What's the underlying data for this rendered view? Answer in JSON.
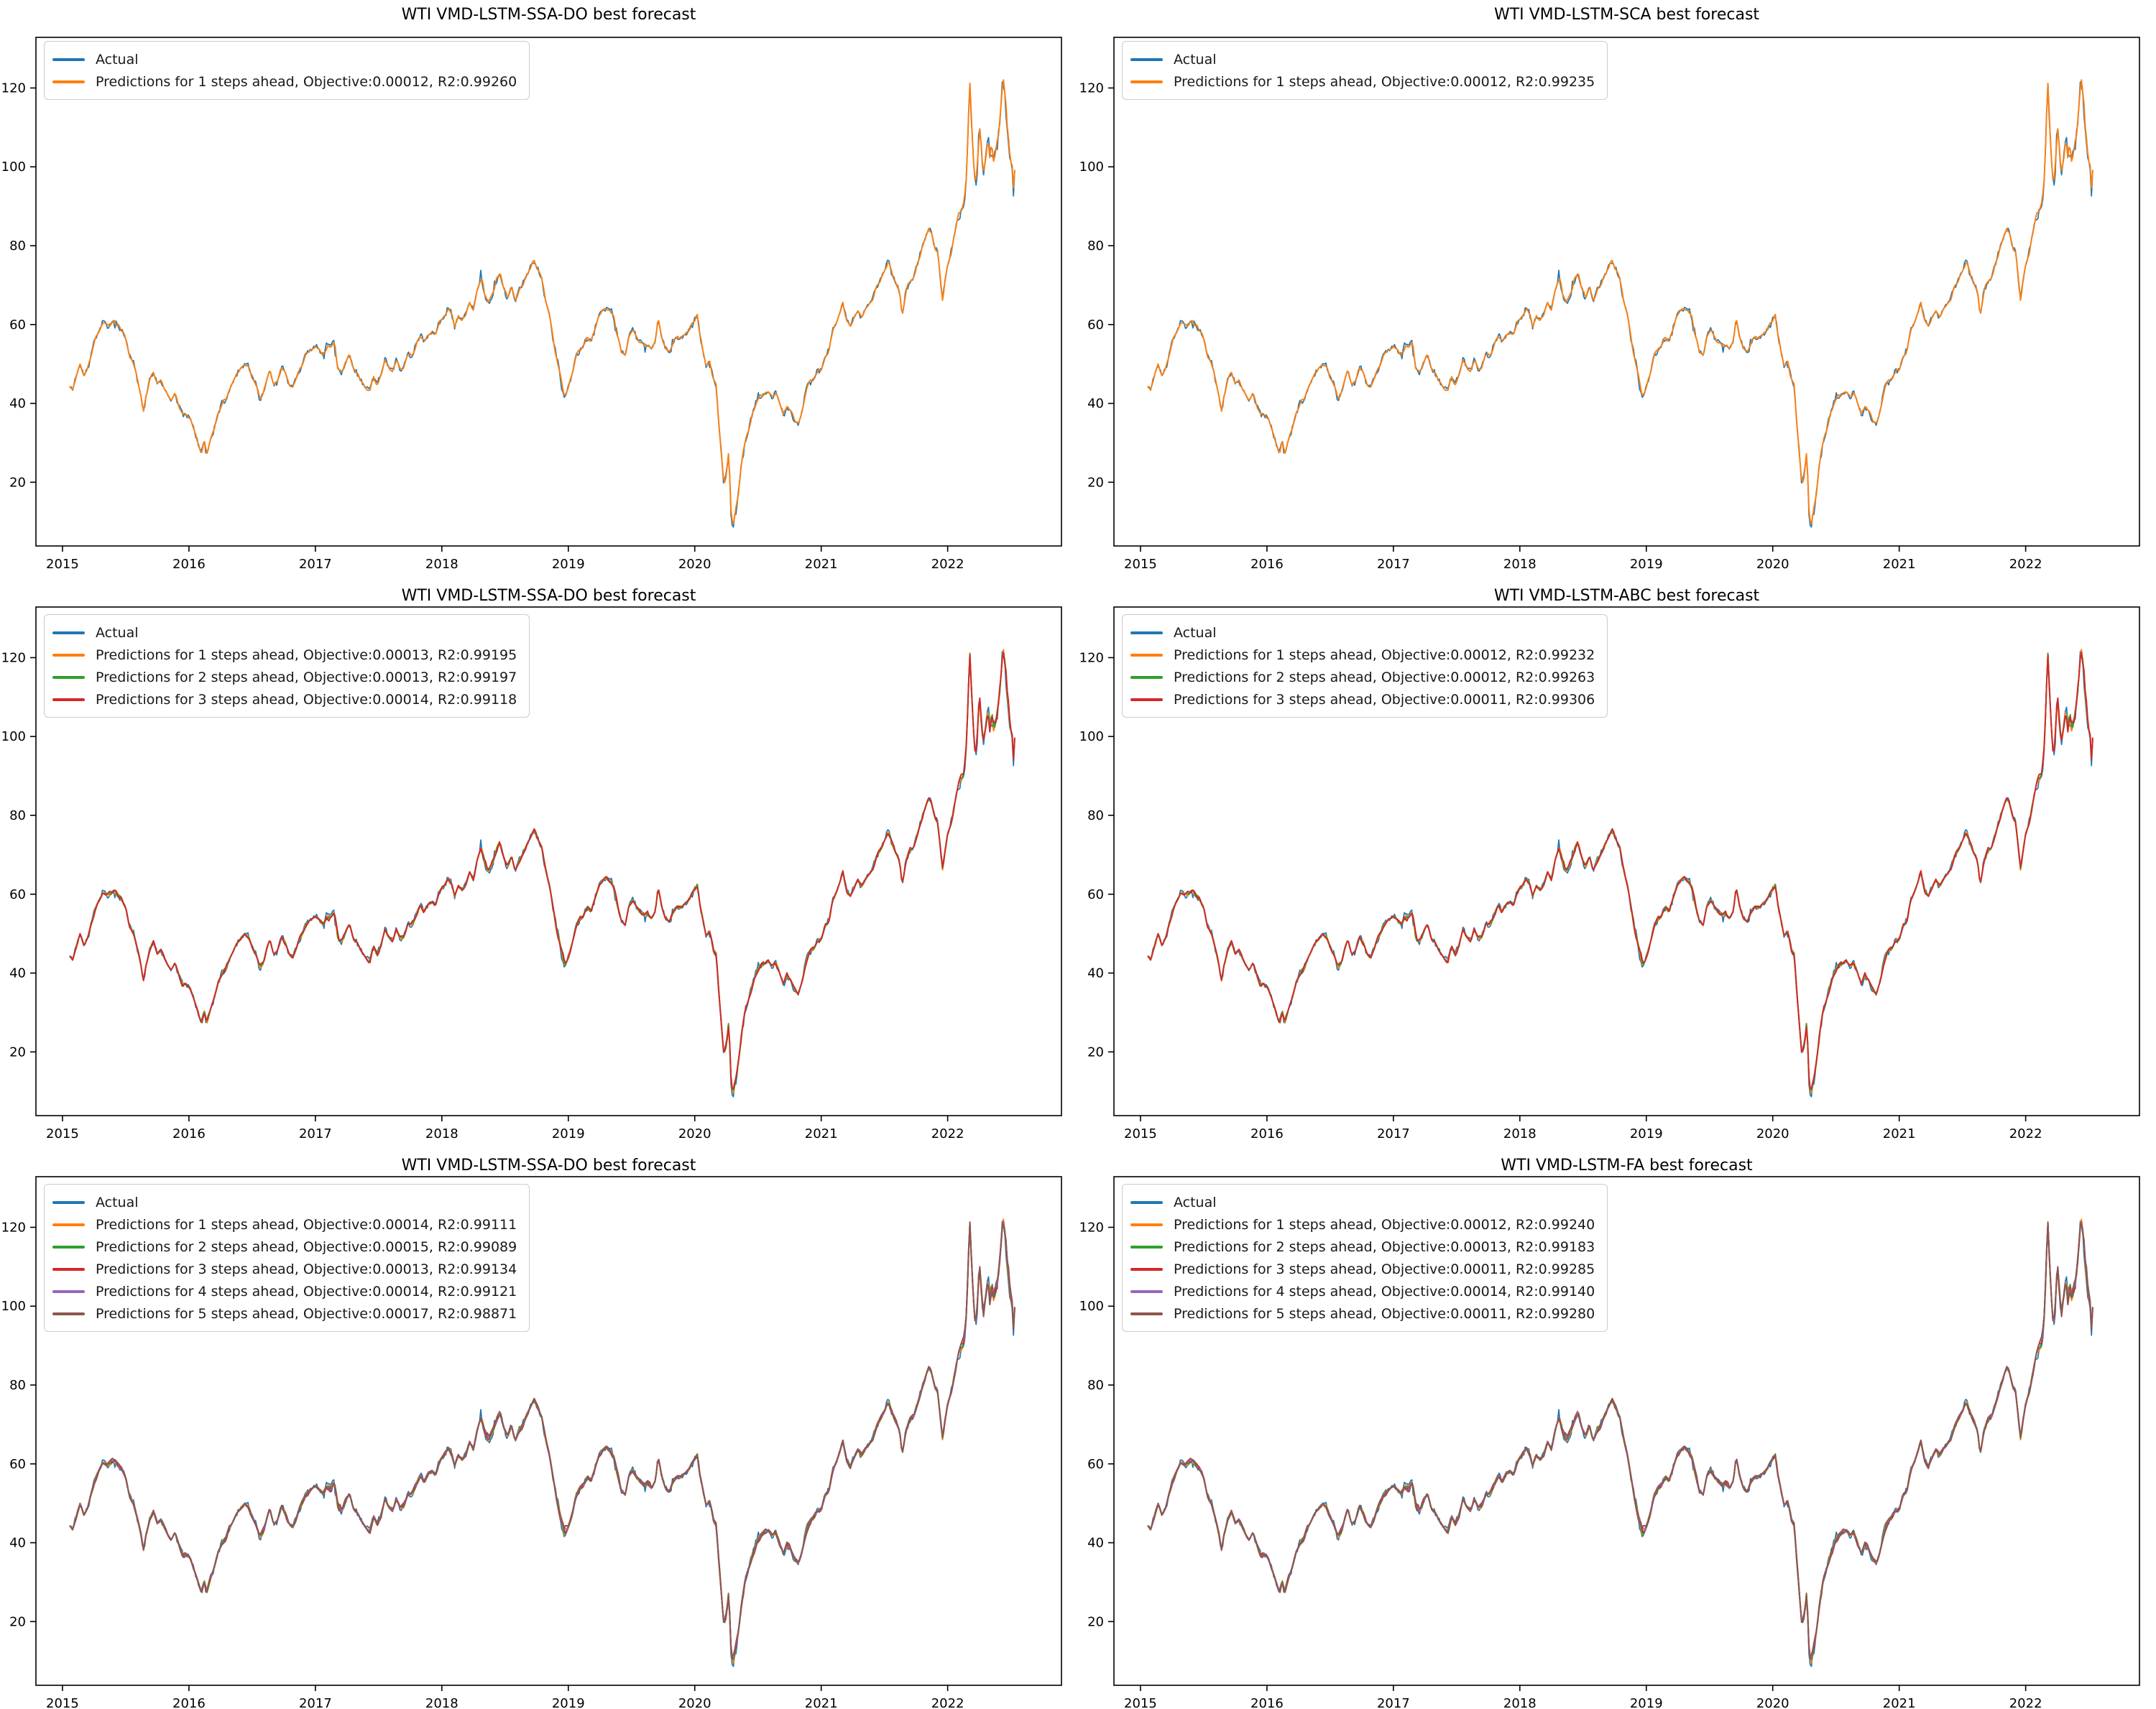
{
  "figure": {
    "background": "#ffffff",
    "rows": 3,
    "cols": 2
  },
  "chart_data": {
    "type": "line",
    "grid": false,
    "legend_position": "upper-left",
    "xlabel": "",
    "ylabel": "",
    "x_ticks": [
      2015,
      2016,
      2017,
      2018,
      2019,
      2020,
      2021,
      2022
    ],
    "y_ticks": [
      20,
      40,
      60,
      80,
      100,
      120
    ],
    "xlim": [
      2014.79,
      2022.9
    ],
    "ylim": [
      3.84,
      132.84
    ],
    "colors": {
      "actual": "#1f77b4",
      "step1": "#ff7f0e",
      "step2": "#2ca02c",
      "step3": "#d62728",
      "step4": "#9467bd",
      "step5": "#8c564b"
    },
    "actual_series": {
      "name": "Actual",
      "color": "#1f77b4",
      "x_unit": "year",
      "y_unit": "USD per barrel",
      "points": [
        [
          2015.06,
          45
        ],
        [
          2015.08,
          44
        ],
        [
          2015.11,
          47
        ],
        [
          2015.14,
          50
        ],
        [
          2015.17,
          47
        ],
        [
          2015.2,
          49
        ],
        [
          2015.23,
          53
        ],
        [
          2015.26,
          56
        ],
        [
          2015.29,
          58
        ],
        [
          2015.32,
          60
        ],
        [
          2015.35,
          59
        ],
        [
          2015.38,
          60
        ],
        [
          2015.41,
          61
        ],
        [
          2015.44,
          60
        ],
        [
          2015.47,
          59
        ],
        [
          2015.5,
          57
        ],
        [
          2015.53,
          52
        ],
        [
          2015.56,
          50
        ],
        [
          2015.59,
          46
        ],
        [
          2015.62,
          42
        ],
        [
          2015.64,
          38
        ],
        [
          2015.66,
          42
        ],
        [
          2015.69,
          46
        ],
        [
          2015.72,
          48
        ],
        [
          2015.75,
          45
        ],
        [
          2015.78,
          46
        ],
        [
          2015.81,
          44
        ],
        [
          2015.84,
          42
        ],
        [
          2015.86,
          41
        ],
        [
          2015.89,
          43
        ],
        [
          2015.92,
          40
        ],
        [
          2015.95,
          37
        ],
        [
          2015.98,
          37
        ],
        [
          2016.01,
          36
        ],
        [
          2016.04,
          33
        ],
        [
          2016.07,
          30
        ],
        [
          2016.1,
          27
        ],
        [
          2016.12,
          30
        ],
        [
          2016.14,
          27
        ],
        [
          2016.17,
          31
        ],
        [
          2016.2,
          34
        ],
        [
          2016.23,
          38
        ],
        [
          2016.26,
          40
        ],
        [
          2016.29,
          41
        ],
        [
          2016.32,
          44
        ],
        [
          2016.35,
          46
        ],
        [
          2016.38,
          48
        ],
        [
          2016.41,
          49
        ],
        [
          2016.44,
          50
        ],
        [
          2016.47,
          49
        ],
        [
          2016.5,
          46
        ],
        [
          2016.53,
          44
        ],
        [
          2016.56,
          41
        ],
        [
          2016.59,
          43
        ],
        [
          2016.62,
          47
        ],
        [
          2016.64,
          49
        ],
        [
          2016.67,
          45
        ],
        [
          2016.7,
          46
        ],
        [
          2016.73,
          50
        ],
        [
          2016.76,
          48
        ],
        [
          2016.79,
          45
        ],
        [
          2016.82,
          44
        ],
        [
          2016.85,
          46
        ],
        [
          2016.88,
          49
        ],
        [
          2016.92,
          52
        ],
        [
          2016.96,
          53
        ],
        [
          2017.0,
          54
        ],
        [
          2017.03,
          53
        ],
        [
          2017.06,
          52
        ],
        [
          2017.09,
          54
        ],
        [
          2017.12,
          53
        ],
        [
          2017.15,
          54
        ],
        [
          2017.18,
          48
        ],
        [
          2017.21,
          48
        ],
        [
          2017.24,
          51
        ],
        [
          2017.27,
          53
        ],
        [
          2017.3,
          49
        ],
        [
          2017.33,
          48
        ],
        [
          2017.36,
          46
        ],
        [
          2017.4,
          44
        ],
        [
          2017.43,
          42.5
        ],
        [
          2017.46,
          46
        ],
        [
          2017.49,
          44
        ],
        [
          2017.52,
          46
        ],
        [
          2017.55,
          50
        ],
        [
          2017.58,
          48
        ],
        [
          2017.61,
          47
        ],
        [
          2017.64,
          50
        ],
        [
          2017.67,
          48
        ],
        [
          2017.7,
          49
        ],
        [
          2017.73,
          52
        ],
        [
          2017.76,
          52
        ],
        [
          2017.8,
          55
        ],
        [
          2017.83,
          57
        ],
        [
          2017.86,
          55
        ],
        [
          2017.89,
          57
        ],
        [
          2017.92,
          58
        ],
        [
          2017.95,
          57
        ],
        [
          2017.98,
          60
        ],
        [
          2018.02,
          62
        ],
        [
          2018.05,
          64
        ],
        [
          2018.08,
          62
        ],
        [
          2018.1,
          59
        ],
        [
          2018.13,
          62
        ],
        [
          2018.16,
          61
        ],
        [
          2018.19,
          62
        ],
        [
          2018.22,
          65
        ],
        [
          2018.25,
          63
        ],
        [
          2018.28,
          68
        ],
        [
          2018.31,
          71
        ],
        [
          2018.34,
          67
        ],
        [
          2018.37,
          66
        ],
        [
          2018.4,
          69
        ],
        [
          2018.43,
          72
        ],
        [
          2018.46,
          74
        ],
        [
          2018.49,
          70
        ],
        [
          2018.52,
          68
        ],
        [
          2018.55,
          71
        ],
        [
          2018.58,
          67
        ],
        [
          2018.61,
          69
        ],
        [
          2018.64,
          70
        ],
        [
          2018.67,
          72
        ],
        [
          2018.7,
          74
        ],
        [
          2018.73,
          76
        ],
        [
          2018.76,
          74
        ],
        [
          2018.79,
          72
        ],
        [
          2018.82,
          67
        ],
        [
          2018.85,
          63
        ],
        [
          2018.88,
          57
        ],
        [
          2018.91,
          51
        ],
        [
          2018.94,
          46
        ],
        [
          2018.97,
          43
        ],
        [
          2019.0,
          45
        ],
        [
          2019.03,
          48
        ],
        [
          2019.06,
          52
        ],
        [
          2019.09,
          54
        ],
        [
          2019.12,
          55
        ],
        [
          2019.15,
          57
        ],
        [
          2019.18,
          56
        ],
        [
          2019.21,
          59
        ],
        [
          2019.24,
          62
        ],
        [
          2019.27,
          63
        ],
        [
          2019.3,
          64
        ],
        [
          2019.33,
          63
        ],
        [
          2019.36,
          61
        ],
        [
          2019.39,
          57
        ],
        [
          2019.42,
          53
        ],
        [
          2019.45,
          52
        ],
        [
          2019.48,
          57
        ],
        [
          2019.51,
          58
        ],
        [
          2019.54,
          56
        ],
        [
          2019.57,
          55
        ],
        [
          2019.6,
          54
        ],
        [
          2019.63,
          55
        ],
        [
          2019.66,
          54
        ],
        [
          2019.69,
          56
        ],
        [
          2019.71,
          62
        ],
        [
          2019.74,
          57
        ],
        [
          2019.77,
          54
        ],
        [
          2019.8,
          53
        ],
        [
          2019.83,
          56
        ],
        [
          2019.86,
          57
        ],
        [
          2019.89,
          57
        ],
        [
          2019.92,
          58
        ],
        [
          2019.95,
          59
        ],
        [
          2019.98,
          61
        ],
        [
          2020.02,
          63
        ],
        [
          2020.04,
          58
        ],
        [
          2020.07,
          53
        ],
        [
          2020.09,
          50
        ],
        [
          2020.12,
          51
        ],
        [
          2020.15,
          46
        ],
        [
          2020.17,
          45
        ],
        [
          2020.19,
          36
        ],
        [
          2020.21,
          28
        ],
        [
          2020.23,
          20
        ],
        [
          2020.25,
          22
        ],
        [
          2020.27,
          28
        ],
        [
          2020.285,
          14
        ],
        [
          2020.3,
          10
        ],
        [
          2020.32,
          14
        ],
        [
          2020.34,
          18
        ],
        [
          2020.37,
          26
        ],
        [
          2020.4,
          32
        ],
        [
          2020.43,
          35
        ],
        [
          2020.46,
          38
        ],
        [
          2020.49,
          40
        ],
        [
          2020.52,
          41
        ],
        [
          2020.55,
          42
        ],
        [
          2020.58,
          43
        ],
        [
          2020.61,
          42
        ],
        [
          2020.64,
          43
        ],
        [
          2020.67,
          40
        ],
        [
          2020.7,
          37
        ],
        [
          2020.73,
          40
        ],
        [
          2020.76,
          39
        ],
        [
          2020.79,
          37
        ],
        [
          2020.82,
          36
        ],
        [
          2020.85,
          39
        ],
        [
          2020.88,
          43
        ],
        [
          2020.91,
          45
        ],
        [
          2020.94,
          46
        ],
        [
          2020.97,
          48
        ],
        [
          2021.0,
          48
        ],
        [
          2021.03,
          52
        ],
        [
          2021.06,
          53
        ],
        [
          2021.09,
          58
        ],
        [
          2021.12,
          60
        ],
        [
          2021.15,
          63
        ],
        [
          2021.17,
          66
        ],
        [
          2021.2,
          61
        ],
        [
          2021.23,
          59
        ],
        [
          2021.26,
          61
        ],
        [
          2021.29,
          63
        ],
        [
          2021.32,
          62
        ],
        [
          2021.35,
          64
        ],
        [
          2021.38,
          65
        ],
        [
          2021.41,
          66
        ],
        [
          2021.44,
          69
        ],
        [
          2021.47,
          71
        ],
        [
          2021.5,
          73
        ],
        [
          2021.53,
          75
        ],
        [
          2021.56,
          72
        ],
        [
          2021.59,
          70
        ],
        [
          2021.62,
          68
        ],
        [
          2021.64,
          62
        ],
        [
          2021.67,
          68
        ],
        [
          2021.7,
          71
        ],
        [
          2021.73,
          72
        ],
        [
          2021.76,
          75
        ],
        [
          2021.79,
          78
        ],
        [
          2021.82,
          81
        ],
        [
          2021.85,
          84
        ],
        [
          2021.87,
          83
        ],
        [
          2021.9,
          79
        ],
        [
          2021.92,
          78
        ],
        [
          2021.94,
          72
        ],
        [
          2021.96,
          66
        ],
        [
          2021.98,
          71
        ],
        [
          2022.0,
          75
        ],
        [
          2022.03,
          78
        ],
        [
          2022.06,
          83
        ],
        [
          2022.09,
          88
        ],
        [
          2022.11,
          90
        ],
        [
          2022.13,
          92
        ],
        [
          2022.15,
          100
        ],
        [
          2022.16,
          110
        ],
        [
          2022.175,
          123
        ],
        [
          2022.19,
          112
        ],
        [
          2022.21,
          100
        ],
        [
          2022.22,
          96
        ],
        [
          2022.24,
          104
        ],
        [
          2022.25,
          113
        ],
        [
          2022.27,
          104
        ],
        [
          2022.28,
          99
        ],
        [
          2022.3,
          103
        ],
        [
          2022.32,
          108
        ],
        [
          2022.33,
          101
        ],
        [
          2022.35,
          105
        ],
        [
          2022.36,
          102
        ],
        [
          2022.38,
          104
        ],
        [
          2022.4,
          108
        ],
        [
          2022.42,
          115
        ],
        [
          2022.43,
          120
        ],
        [
          2022.44,
          122
        ],
        [
          2022.46,
          117
        ],
        [
          2022.47,
          112
        ],
        [
          2022.48,
          110
        ],
        [
          2022.49,
          106
        ],
        [
          2022.5,
          104
        ],
        [
          2022.51,
          103
        ],
        [
          2022.52,
          97
        ],
        [
          2022.53,
          102
        ]
      ]
    },
    "panels": [
      {
        "title": "WTI VMD-LSTM-SSA-DO best forecast",
        "legend": [
          {
            "label": "Actual",
            "color": "#1f77b4",
            "steps": 0
          },
          {
            "label": "Predictions for 1 steps ahead, Objective:0.00012, R2:0.99260",
            "color": "#ff7f0e",
            "steps": 1
          }
        ]
      },
      {
        "title": "WTI VMD-LSTM-SCA best forecast",
        "legend": [
          {
            "label": "Actual",
            "color": "#1f77b4",
            "steps": 0
          },
          {
            "label": "Predictions for 1 steps ahead, Objective:0.00012, R2:0.99235",
            "color": "#ff7f0e",
            "steps": 1
          }
        ]
      },
      {
        "title": "WTI VMD-LSTM-SSA-DO best forecast",
        "legend": [
          {
            "label": "Actual",
            "color": "#1f77b4",
            "steps": 0
          },
          {
            "label": "Predictions for 1 steps ahead, Objective:0.00013, R2:0.99195",
            "color": "#ff7f0e",
            "steps": 1
          },
          {
            "label": "Predictions for 2 steps ahead, Objective:0.00013, R2:0.99197",
            "color": "#2ca02c",
            "steps": 2
          },
          {
            "label": "Predictions for 3 steps ahead, Objective:0.00014, R2:0.99118",
            "color": "#d62728",
            "steps": 3
          }
        ]
      },
      {
        "title": "WTI VMD-LSTM-ABC best forecast",
        "legend": [
          {
            "label": "Actual",
            "color": "#1f77b4",
            "steps": 0
          },
          {
            "label": "Predictions for 1 steps ahead, Objective:0.00012, R2:0.99232",
            "color": "#ff7f0e",
            "steps": 1
          },
          {
            "label": "Predictions for 2 steps ahead, Objective:0.00012, R2:0.99263",
            "color": "#2ca02c",
            "steps": 2
          },
          {
            "label": "Predictions for 3 steps ahead, Objective:0.00011, R2:0.99306",
            "color": "#d62728",
            "steps": 3
          }
        ]
      },
      {
        "title": "WTI VMD-LSTM-SSA-DO best forecast",
        "legend": [
          {
            "label": "Actual",
            "color": "#1f77b4",
            "steps": 0
          },
          {
            "label": "Predictions for 1 steps ahead, Objective:0.00014, R2:0.99111",
            "color": "#ff7f0e",
            "steps": 1
          },
          {
            "label": "Predictions for 2 steps ahead, Objective:0.00015, R2:0.99089",
            "color": "#2ca02c",
            "steps": 2
          },
          {
            "label": "Predictions for 3 steps ahead, Objective:0.00013, R2:0.99134",
            "color": "#d62728",
            "steps": 3
          },
          {
            "label": "Predictions for 4 steps ahead, Objective:0.00014, R2:0.99121",
            "color": "#9467bd",
            "steps": 4
          },
          {
            "label": "Predictions for 5 steps ahead, Objective:0.00017, R2:0.98871",
            "color": "#8c564b",
            "steps": 5
          }
        ]
      },
      {
        "title": "WTI VMD-LSTM-FA best forecast",
        "legend": [
          {
            "label": "Actual",
            "color": "#1f77b4",
            "steps": 0
          },
          {
            "label": "Predictions for 1 steps ahead, Objective:0.00012, R2:0.99240",
            "color": "#ff7f0e",
            "steps": 1
          },
          {
            "label": "Predictions for 2 steps ahead, Objective:0.00013, R2:0.99183",
            "color": "#2ca02c",
            "steps": 2
          },
          {
            "label": "Predictions for 3 steps ahead, Objective:0.00011, R2:0.99285",
            "color": "#d62728",
            "steps": 3
          },
          {
            "label": "Predictions for 4 steps ahead, Objective:0.00014, R2:0.99140",
            "color": "#9467bd",
            "steps": 4
          },
          {
            "label": "Predictions for 5 steps ahead, Objective:0.00011, R2:0.99280",
            "color": "#8c564b",
            "steps": 5
          }
        ]
      }
    ]
  }
}
